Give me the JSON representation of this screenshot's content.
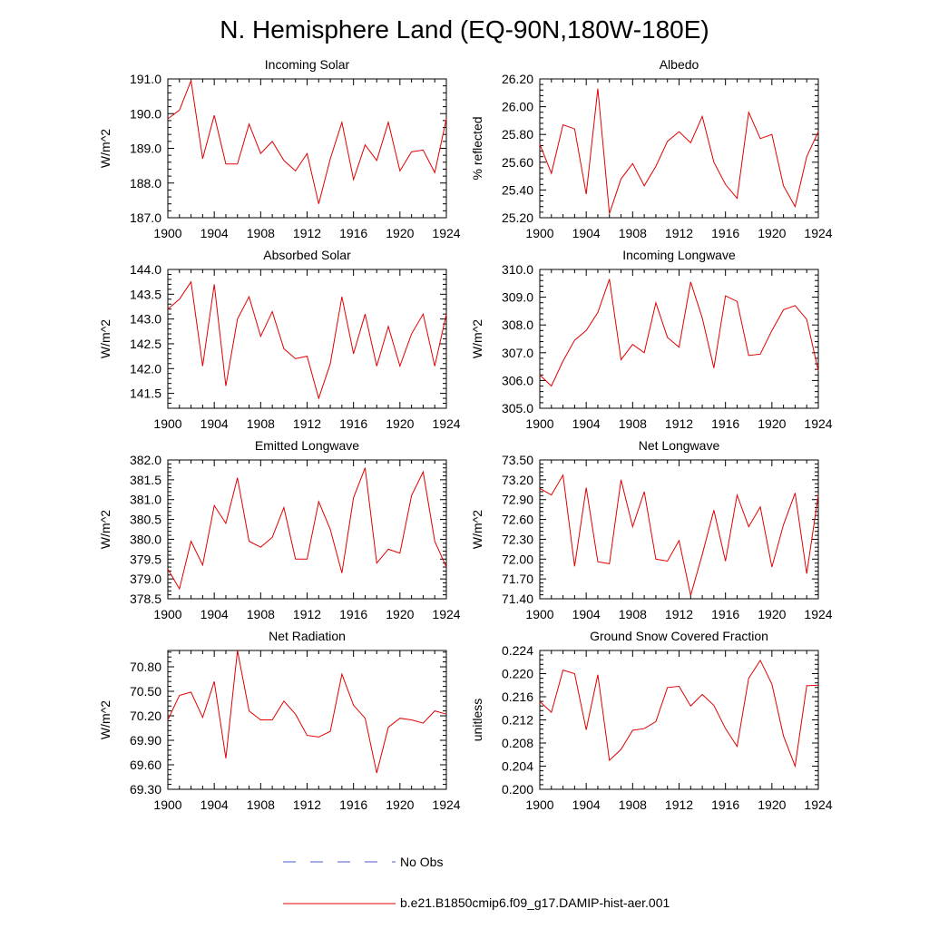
{
  "figure": {
    "title": "N. Hemisphere Land (EQ-90N,180W-180E)"
  },
  "legend": {
    "obs_label": "No Obs",
    "model_label": "b.e21.B1850cmip6.f09_g17.DAMIP-hist-aer.001",
    "obs_color": "#4a5bd0",
    "model_color": "#e00000"
  },
  "chart_data": [
    {
      "type": "line",
      "title": "Incoming Solar",
      "xlabel": "",
      "ylabel": "W/m^2",
      "xlim": [
        1900,
        1924
      ],
      "ylim": [
        187.0,
        191.0
      ],
      "xticks": [
        1900,
        1904,
        1908,
        1912,
        1916,
        1920,
        1924
      ],
      "yticks": [
        187.0,
        188.0,
        189.0,
        190.0,
        191.0
      ],
      "ydecimals": 1,
      "x": [
        1900,
        1901,
        1902,
        1903,
        1904,
        1905,
        1906,
        1907,
        1908,
        1909,
        1910,
        1911,
        1912,
        1913,
        1914,
        1915,
        1916,
        1917,
        1918,
        1919,
        1920,
        1921,
        1922,
        1923,
        1924
      ],
      "series": [
        {
          "name": "b.e21.B1850cmip6.f09_g17.DAMIP-hist-aer.001",
          "values": [
            189.85,
            190.1,
            190.95,
            188.7,
            189.95,
            188.55,
            188.55,
            189.7,
            188.85,
            189.2,
            188.65,
            188.35,
            188.85,
            187.4,
            188.7,
            189.75,
            188.1,
            189.1,
            188.65,
            189.75,
            188.35,
            188.9,
            188.95,
            188.3,
            189.85
          ]
        }
      ]
    },
    {
      "type": "line",
      "title": "Albedo",
      "xlabel": "",
      "ylabel": "% reflected",
      "xlim": [
        1900,
        1924
      ],
      "ylim": [
        25.2,
        26.2
      ],
      "xticks": [
        1900,
        1904,
        1908,
        1912,
        1916,
        1920,
        1924
      ],
      "yticks": [
        25.2,
        25.4,
        25.6,
        25.8,
        26.0,
        26.2
      ],
      "ydecimals": 2,
      "x": [
        1900,
        1901,
        1902,
        1903,
        1904,
        1905,
        1906,
        1907,
        1908,
        1909,
        1910,
        1911,
        1912,
        1913,
        1914,
        1915,
        1916,
        1917,
        1918,
        1919,
        1920,
        1921,
        1922,
        1923,
        1924
      ],
      "series": [
        {
          "name": "b.e21.B1850cmip6.f09_g17.DAMIP-hist-aer.001",
          "values": [
            25.73,
            25.52,
            25.87,
            25.84,
            25.37,
            26.13,
            25.23,
            25.48,
            25.59,
            25.43,
            25.57,
            25.75,
            25.82,
            25.74,
            25.93,
            25.6,
            25.44,
            25.34,
            25.96,
            25.77,
            25.8,
            25.43,
            25.28,
            25.64,
            25.82
          ]
        }
      ]
    },
    {
      "type": "line",
      "title": "Absorbed Solar",
      "xlabel": "",
      "ylabel": "W/m^2",
      "xlim": [
        1900,
        1924
      ],
      "ylim": [
        141.2,
        144.0
      ],
      "xticks": [
        1900,
        1904,
        1908,
        1912,
        1916,
        1920,
        1924
      ],
      "yticks": [
        141.5,
        142.0,
        142.5,
        143.0,
        143.5,
        144.0
      ],
      "ydecimals": 1,
      "x": [
        1900,
        1901,
        1902,
        1903,
        1904,
        1905,
        1906,
        1907,
        1908,
        1909,
        1910,
        1911,
        1912,
        1913,
        1914,
        1915,
        1916,
        1917,
        1918,
        1919,
        1920,
        1921,
        1922,
        1923,
        1924
      ],
      "series": [
        {
          "name": "b.e21.B1850cmip6.f09_g17.DAMIP-hist-aer.001",
          "values": [
            143.2,
            143.4,
            143.75,
            142.05,
            143.7,
            141.65,
            143.0,
            143.45,
            142.65,
            143.15,
            142.4,
            142.2,
            142.25,
            141.4,
            142.1,
            143.45,
            142.3,
            143.1,
            142.05,
            142.85,
            142.05,
            142.7,
            143.1,
            142.05,
            143.1
          ]
        }
      ]
    },
    {
      "type": "line",
      "title": "Incoming Longwave",
      "xlabel": "",
      "ylabel": "W/m^2",
      "xlim": [
        1900,
        1924
      ],
      "ylim": [
        305.0,
        310.0
      ],
      "xticks": [
        1900,
        1904,
        1908,
        1912,
        1916,
        1920,
        1924
      ],
      "yticks": [
        305.0,
        306.0,
        307.0,
        308.0,
        309.0,
        310.0
      ],
      "ydecimals": 1,
      "x": [
        1900,
        1901,
        1902,
        1903,
        1904,
        1905,
        1906,
        1907,
        1908,
        1909,
        1910,
        1911,
        1912,
        1913,
        1914,
        1915,
        1916,
        1917,
        1918,
        1919,
        1920,
        1921,
        1922,
        1923,
        1924
      ],
      "series": [
        {
          "name": "b.e21.B1850cmip6.f09_g17.DAMIP-hist-aer.001",
          "values": [
            306.2,
            305.8,
            306.7,
            307.45,
            307.8,
            308.45,
            309.65,
            306.75,
            307.3,
            307.0,
            308.8,
            307.55,
            307.2,
            309.55,
            308.25,
            306.45,
            309.05,
            308.85,
            306.9,
            306.95,
            307.8,
            308.55,
            308.7,
            308.2,
            306.35
          ]
        }
      ]
    },
    {
      "type": "line",
      "title": "Emitted Longwave",
      "xlabel": "",
      "ylabel": "W/m^2",
      "xlim": [
        1900,
        1924
      ],
      "ylim": [
        378.5,
        382.0
      ],
      "xticks": [
        1900,
        1904,
        1908,
        1912,
        1916,
        1920,
        1924
      ],
      "yticks": [
        378.5,
        379.0,
        379.5,
        380.0,
        380.5,
        381.0,
        381.5,
        382.0
      ],
      "ydecimals": 1,
      "x": [
        1900,
        1901,
        1902,
        1903,
        1904,
        1905,
        1906,
        1907,
        1908,
        1909,
        1910,
        1911,
        1912,
        1913,
        1914,
        1915,
        1916,
        1917,
        1918,
        1919,
        1920,
        1921,
        1922,
        1923,
        1924
      ],
      "series": [
        {
          "name": "b.e21.B1850cmip6.f09_g17.DAMIP-hist-aer.001",
          "values": [
            379.25,
            378.75,
            379.95,
            379.35,
            380.85,
            380.4,
            381.55,
            379.95,
            379.8,
            380.05,
            380.8,
            379.5,
            379.5,
            380.95,
            380.25,
            379.15,
            381.05,
            381.8,
            379.4,
            379.75,
            379.65,
            381.1,
            381.7,
            379.95,
            379.3
          ]
        }
      ]
    },
    {
      "type": "line",
      "title": "Net Longwave",
      "xlabel": "",
      "ylabel": "W/m^2",
      "xlim": [
        1900,
        1924
      ],
      "ylim": [
        71.4,
        73.5
      ],
      "xticks": [
        1900,
        1904,
        1908,
        1912,
        1916,
        1920,
        1924
      ],
      "yticks": [
        71.4,
        71.7,
        72.0,
        72.3,
        72.6,
        72.9,
        73.2,
        73.5
      ],
      "ydecimals": 2,
      "x": [
        1900,
        1901,
        1902,
        1903,
        1904,
        1905,
        1906,
        1907,
        1908,
        1909,
        1910,
        1911,
        1912,
        1913,
        1914,
        1915,
        1916,
        1917,
        1918,
        1919,
        1920,
        1921,
        1922,
        1923,
        1924
      ],
      "series": [
        {
          "name": "b.e21.B1850cmip6.f09_g17.DAMIP-hist-aer.001",
          "values": [
            73.07,
            72.97,
            73.27,
            71.89,
            73.08,
            71.96,
            71.93,
            73.2,
            72.49,
            73.02,
            72.0,
            71.97,
            72.28,
            71.45,
            72.07,
            72.74,
            71.97,
            72.97,
            72.49,
            72.79,
            71.88,
            72.52,
            73.0,
            71.78,
            72.97
          ]
        }
      ]
    },
    {
      "type": "line",
      "title": "Net Radiation",
      "xlabel": "",
      "ylabel": "W/m^2",
      "xlim": [
        1900,
        1924
      ],
      "ylim": [
        69.3,
        71.0
      ],
      "xticks": [
        1900,
        1904,
        1908,
        1912,
        1916,
        1920,
        1924
      ],
      "yticks": [
        69.3,
        69.6,
        69.9,
        70.2,
        70.5,
        70.8
      ],
      "ydecimals": 2,
      "x": [
        1900,
        1901,
        1902,
        1903,
        1904,
        1905,
        1906,
        1907,
        1908,
        1909,
        1910,
        1911,
        1912,
        1913,
        1914,
        1915,
        1916,
        1917,
        1918,
        1919,
        1920,
        1921,
        1922,
        1923,
        1924
      ],
      "series": [
        {
          "name": "b.e21.B1850cmip6.f09_g17.DAMIP-hist-aer.001",
          "values": [
            70.15,
            70.45,
            70.49,
            70.18,
            70.62,
            69.68,
            71.0,
            70.26,
            70.15,
            70.15,
            70.38,
            70.22,
            69.96,
            69.94,
            70.01,
            70.71,
            70.33,
            70.17,
            69.5,
            70.06,
            70.17,
            70.15,
            70.11,
            70.26,
            70.22
          ]
        }
      ]
    },
    {
      "type": "line",
      "title": "Ground Snow Covered Fraction",
      "xlabel": "",
      "ylabel": "unitless",
      "xlim": [
        1900,
        1924
      ],
      "ylim": [
        0.2,
        0.224
      ],
      "xticks": [
        1900,
        1904,
        1908,
        1912,
        1916,
        1920,
        1924
      ],
      "yticks": [
        0.2,
        0.204,
        0.208,
        0.212,
        0.216,
        0.22,
        0.224
      ],
      "ydecimals": 3,
      "x": [
        1900,
        1901,
        1902,
        1903,
        1904,
        1905,
        1906,
        1907,
        1908,
        1909,
        1910,
        1911,
        1912,
        1913,
        1914,
        1915,
        1916,
        1917,
        1918,
        1919,
        1920,
        1921,
        1922,
        1923,
        1924
      ],
      "series": [
        {
          "name": "b.e21.B1850cmip6.f09_g17.DAMIP-hist-aer.001",
          "values": [
            0.2152,
            0.2133,
            0.2206,
            0.22,
            0.2103,
            0.2198,
            0.205,
            0.2069,
            0.2102,
            0.2105,
            0.2117,
            0.2176,
            0.2178,
            0.2144,
            0.2164,
            0.2145,
            0.2105,
            0.2074,
            0.2192,
            0.2223,
            0.2182,
            0.2092,
            0.204,
            0.2179,
            0.218
          ]
        }
      ]
    }
  ]
}
